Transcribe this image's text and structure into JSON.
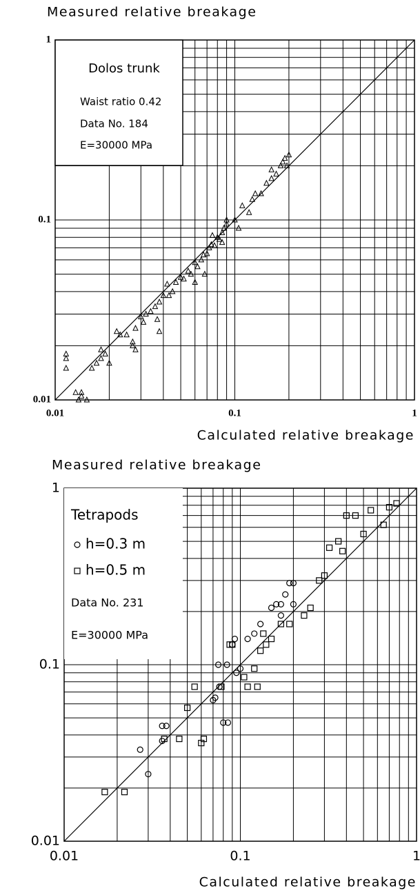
{
  "chart_data": [
    {
      "type": "scatter",
      "x_label": "Calculated relative breakage",
      "y_label": "Measured relative breakage",
      "log_x": true,
      "log_y": true,
      "grid": true,
      "xlim": [
        0.01,
        1
      ],
      "ylim": [
        0.01,
        1
      ],
      "xticks": [
        0.01,
        0.1,
        1
      ],
      "yticks": [
        0.01,
        0.1,
        1
      ],
      "xminorticks": [
        0.02,
        0.03,
        0.04,
        0.05,
        0.06,
        0.07,
        0.08,
        0.09,
        0.2,
        0.3,
        0.4,
        0.5,
        0.6,
        0.7,
        0.8,
        0.9
      ],
      "yminorticks": [
        0.02,
        0.03,
        0.04,
        0.05,
        0.06,
        0.07,
        0.08,
        0.09,
        0.2,
        0.3,
        0.4,
        0.5,
        0.6,
        0.7,
        0.8,
        0.9
      ],
      "annotations": [
        "Dolos trunk",
        "Waist ratio 0.42",
        "Data No. 184",
        "E=30000 MPa"
      ],
      "series": [
        {
          "marker": "triangle",
          "color": "#000000",
          "x": [
            0.0115,
            0.0115,
            0.0115,
            0.013,
            0.014,
            0.014,
            0.0135,
            0.015,
            0.016,
            0.017,
            0.018,
            0.018,
            0.019,
            0.02,
            0.022,
            0.023,
            0.025,
            0.027,
            0.027,
            0.028,
            0.028,
            0.03,
            0.031,
            0.032,
            0.034,
            0.036,
            0.037,
            0.038,
            0.038,
            0.04,
            0.042,
            0.043,
            0.045,
            0.047,
            0.05,
            0.052,
            0.055,
            0.057,
            0.06,
            0.062,
            0.065,
            0.067,
            0.07,
            0.072,
            0.074,
            0.077,
            0.08,
            0.082,
            0.085,
            0.087,
            0.09,
            0.09,
            0.085,
            0.075,
            0.068,
            0.06,
            0.1,
            0.105,
            0.11,
            0.12,
            0.125,
            0.13,
            0.14,
            0.15,
            0.16,
            0.16,
            0.17,
            0.18,
            0.185,
            0.19,
            0.2,
            0.195
          ],
          "y": [
            0.018,
            0.017,
            0.015,
            0.011,
            0.011,
            0.0105,
            0.01,
            0.01,
            0.015,
            0.016,
            0.019,
            0.017,
            0.018,
            0.016,
            0.024,
            0.023,
            0.023,
            0.021,
            0.02,
            0.019,
            0.025,
            0.029,
            0.027,
            0.03,
            0.031,
            0.033,
            0.028,
            0.024,
            0.035,
            0.038,
            0.044,
            0.038,
            0.04,
            0.045,
            0.048,
            0.047,
            0.052,
            0.05,
            0.058,
            0.055,
            0.06,
            0.064,
            0.065,
            0.07,
            0.073,
            0.072,
            0.08,
            0.078,
            0.085,
            0.09,
            0.095,
            0.1,
            0.075,
            0.082,
            0.05,
            0.045,
            0.1,
            0.09,
            0.12,
            0.11,
            0.13,
            0.14,
            0.14,
            0.16,
            0.17,
            0.19,
            0.18,
            0.2,
            0.21,
            0.22,
            0.23,
            0.2
          ]
        }
      ]
    },
    {
      "type": "scatter",
      "x_label": "Calculated relative breakage",
      "y_label": "Measured relative breakage",
      "log_x": true,
      "log_y": true,
      "grid": true,
      "xlim": [
        0.01,
        1
      ],
      "ylim": [
        0.01,
        1
      ],
      "xticks": [
        0.01,
        0.1,
        1
      ],
      "yticks": [
        0.01,
        0.1,
        1
      ],
      "xminorticks": [
        0.02,
        0.03,
        0.04,
        0.05,
        0.06,
        0.07,
        0.08,
        0.09,
        0.2,
        0.3,
        0.4,
        0.5,
        0.6,
        0.7,
        0.8,
        0.9
      ],
      "yminorticks": [
        0.02,
        0.03,
        0.04,
        0.05,
        0.06,
        0.07,
        0.08,
        0.09,
        0.2,
        0.3,
        0.4,
        0.5,
        0.6,
        0.7,
        0.8,
        0.9
      ],
      "annotations": [
        "Tetrapods",
        "Data No. 231",
        "E=30000 MPa"
      ],
      "series": [
        {
          "name": "h=0.3 m",
          "marker": "circle",
          "color": "#000000",
          "x": [
            0.027,
            0.03,
            0.036,
            0.036,
            0.038,
            0.07,
            0.072,
            0.075,
            0.076,
            0.08,
            0.084,
            0.085,
            0.09,
            0.093,
            0.095,
            0.1,
            0.11,
            0.12,
            0.13,
            0.15,
            0.16,
            0.17,
            0.18,
            0.19,
            0.2,
            0.2,
            0.17
          ],
          "y": [
            0.033,
            0.024,
            0.037,
            0.045,
            0.045,
            0.063,
            0.065,
            0.1,
            0.075,
            0.047,
            0.1,
            0.047,
            0.13,
            0.14,
            0.09,
            0.095,
            0.14,
            0.15,
            0.17,
            0.21,
            0.22,
            0.19,
            0.25,
            0.29,
            0.22,
            0.29,
            0.22
          ]
        },
        {
          "name": "h=0.5 m",
          "marker": "square",
          "color": "#000000",
          "x": [
            0.017,
            0.022,
            0.037,
            0.045,
            0.05,
            0.055,
            0.06,
            0.062,
            0.078,
            0.087,
            0.09,
            0.105,
            0.11,
            0.12,
            0.125,
            0.13,
            0.135,
            0.14,
            0.15,
            0.17,
            0.19,
            0.23,
            0.25,
            0.28,
            0.3,
            0.32,
            0.36,
            0.38,
            0.4,
            0.45,
            0.5,
            0.55,
            0.65,
            0.7,
            0.77
          ],
          "y": [
            0.019,
            0.019,
            0.038,
            0.038,
            0.057,
            0.075,
            0.036,
            0.038,
            0.075,
            0.13,
            0.13,
            0.085,
            0.075,
            0.095,
            0.075,
            0.12,
            0.15,
            0.13,
            0.14,
            0.17,
            0.17,
            0.19,
            0.21,
            0.3,
            0.32,
            0.46,
            0.5,
            0.44,
            0.7,
            0.7,
            0.55,
            0.75,
            0.62,
            0.78,
            0.82
          ]
        }
      ]
    }
  ]
}
